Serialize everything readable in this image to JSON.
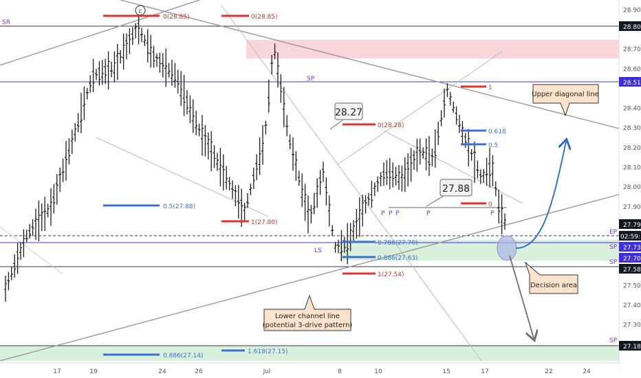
{
  "chart_data": {
    "type": "bar",
    "subtype": "ohlc",
    "y_range": [
      27.03,
      28.95
    ],
    "y_ticks": [
      27.18,
      27.3,
      27.4,
      27.5,
      27.58,
      27.7,
      27.73,
      27.79,
      27.9,
      28.0,
      28.1,
      28.2,
      28.3,
      28.4,
      28.51,
      28.6,
      28.7,
      28.8,
      28.9
    ],
    "x_ticks": [
      "17",
      "19",
      "24",
      "26",
      "Jul",
      "8",
      "10",
      "15",
      "17",
      "22",
      "24"
    ],
    "axis_tags": {
      "sr": {
        "value": "28.80",
        "color": "#131722"
      },
      "sp_upper": {
        "value": "28.51",
        "color": "#3f2fd6"
      },
      "last": {
        "value": "27.79",
        "color": "#131722"
      },
      "countdown": {
        "value": "02:59:14",
        "color": "#131722"
      },
      "ep": {
        "value": "27.73",
        "color": "#3f2fd6"
      },
      "sp_mid": {
        "value": "27.70",
        "color": "#3f2fd6"
      },
      "sp_low": {
        "value": "27.58",
        "color": "#131722"
      },
      "sp_bottom": {
        "value": "27.18",
        "color": "#131722"
      }
    },
    "price_tags": [
      {
        "text": "28.27"
      },
      {
        "text": "27.88"
      }
    ],
    "side_labels": {
      "sr": "SR",
      "sp_mid": "SP",
      "ep": "EP",
      "sp_right_a": "SP",
      "sp_right_b": "SP",
      "sp_bottom": "SP"
    },
    "pattern_labels": {
      "c": "c",
      "ls": "LS",
      "p": [
        "P",
        "P",
        "P",
        "P",
        "P"
      ]
    },
    "fib_labels": [
      {
        "text": "0(28.85)",
        "color": "#c0392b"
      },
      {
        "text": "0(28.85)",
        "color": "#c0392b"
      },
      {
        "text": "0(28.28)",
        "color": "#c0392b"
      },
      {
        "text": "1",
        "color": "#c0392b"
      },
      {
        "text": "0",
        "color": "#c0392b"
      },
      {
        "text": "1(27.80)",
        "color": "#c0392b"
      },
      {
        "text": "1(27.54)",
        "color": "#c0392b"
      },
      {
        "text": "0.5(27.88)",
        "color": "#3b6fd4"
      },
      {
        "text": "0.618",
        "color": "#3b6fd4"
      },
      {
        "text": "0.5",
        "color": "#3b6fd4"
      },
      {
        "text": "0.786(27.70)",
        "color": "#3b6fd4"
      },
      {
        "text": "0.886(27.63)",
        "color": "#3b6fd4"
      },
      {
        "text": "0.886(27.14)",
        "color": "#3b6fd4"
      },
      {
        "text": "1.618(27.15)",
        "color": "#3b6fd4"
      }
    ],
    "callouts": {
      "upper": "Upper diagonal line",
      "lower_1": "Lower channel line",
      "lower_2": "(potential 3-drive pattern)",
      "decision": "Decision area"
    },
    "colors": {
      "resistance_zone": "#f9d6d9",
      "support_zone": "#d9f0dc",
      "callout_fill": "#fde3cc",
      "bullish_arrow": "#2467c6",
      "bearish_arrow": "#6e6e6e",
      "decision_circle": "#aab3e6"
    }
  }
}
